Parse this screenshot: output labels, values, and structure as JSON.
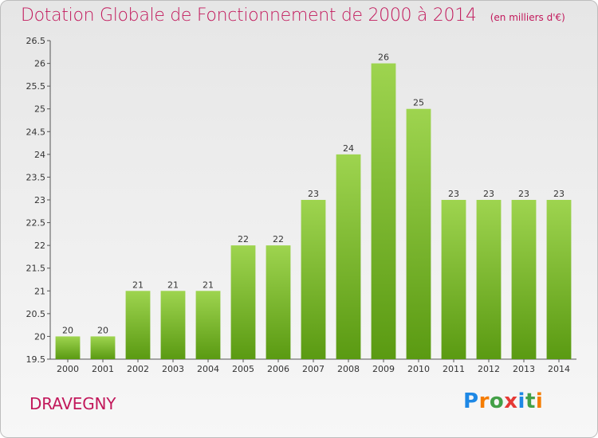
{
  "title": "Dotation Globale de Fonctionnement de 2000 à 2014",
  "subtitle": "(en milliers d'€)",
  "commune": "DRAVEGNY",
  "logo": {
    "letters": [
      "P",
      "r",
      "o",
      "x",
      "i",
      "t",
      "i"
    ],
    "colors": [
      "#1e88e5",
      "#f57c00",
      "#43a047",
      "#e53935",
      "#1e88e5",
      "#43a047",
      "#f57c00"
    ]
  },
  "colors": {
    "title": "#c2185b",
    "bar_top": "#9ed44f",
    "bar_bottom": "#5a9a12",
    "axis": "#555555"
  },
  "chart_data": {
    "type": "bar",
    "title": "Dotation Globale de Fonctionnement de 2000 à 2014",
    "subtitle": "(en milliers d'€)",
    "categories": [
      "2000",
      "2001",
      "2002",
      "2003",
      "2004",
      "2005",
      "2006",
      "2007",
      "2008",
      "2009",
      "2010",
      "2011",
      "2012",
      "2013",
      "2014"
    ],
    "values": [
      20,
      20,
      21,
      21,
      21,
      22,
      22,
      23,
      24,
      26,
      25,
      23,
      23,
      23,
      23
    ],
    "value_labels": [
      "20",
      "20",
      "21",
      "21",
      "21",
      "22",
      "22",
      "23",
      "24",
      "26",
      "25",
      "23",
      "23",
      "23",
      "23"
    ],
    "ylim": [
      19.5,
      26.5
    ],
    "yticks": [
      19.5,
      20,
      20.5,
      21,
      21.5,
      22,
      22.5,
      23,
      23.5,
      24,
      24.5,
      25,
      25.5,
      26,
      26.5
    ],
    "ytick_labels": [
      "19.5",
      "20",
      "20.5",
      "21",
      "21.5",
      "22",
      "22.5",
      "23",
      "23.5",
      "24",
      "24.5",
      "25",
      "25.5",
      "26",
      "26.5"
    ],
    "grid": false,
    "legend": "none",
    "xlabel": "",
    "ylabel": ""
  }
}
